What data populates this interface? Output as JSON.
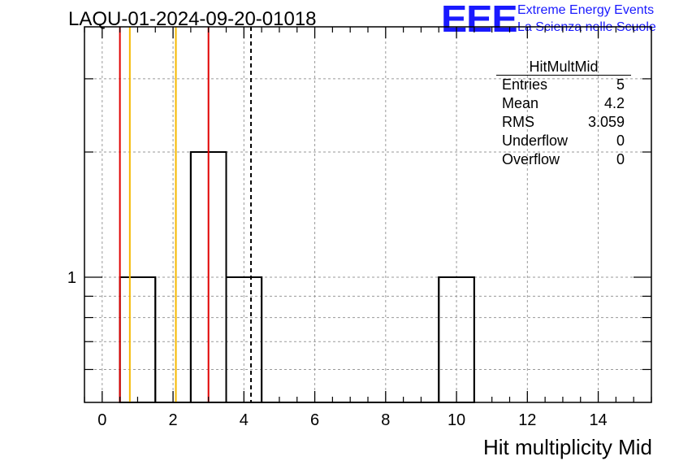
{
  "title": "LAQU-01-2024-09-20-01018",
  "logo": {
    "mark": "EEE",
    "line1": "Extreme Energy Events",
    "line2": "La Scienza nelle Scuole",
    "color": "#1a1aff"
  },
  "stats": {
    "title": "HitMultMid",
    "rows": [
      {
        "label": "Entries",
        "value": "5"
      },
      {
        "label": "Mean",
        "value": "4.2"
      },
      {
        "label": "RMS",
        "value": "3.059"
      },
      {
        "label": "Underflow",
        "value": "0"
      },
      {
        "label": "Overflow",
        "value": "0"
      }
    ]
  },
  "chart_data": {
    "type": "bar",
    "histogram": true,
    "xlabel": "Hit multiplicity Mid",
    "ylabel": "",
    "xlim": [
      -0.5,
      15.5
    ],
    "ylim": [
      0.5,
      4.0
    ],
    "yscale": "log",
    "grid": true,
    "bin_edges": [
      0.5,
      1.5,
      2.5,
      3.5,
      4.5,
      5.5,
      6.5,
      7.5,
      8.5,
      9.5,
      10.5
    ],
    "values": [
      1,
      0,
      2,
      1,
      0,
      0,
      0,
      0,
      0,
      1
    ],
    "xticks": [
      "0",
      "2",
      "4",
      "6",
      "8",
      "10",
      "12",
      "14"
    ],
    "yticks": [
      "1"
    ],
    "vertical_lines": [
      {
        "x": 0.5,
        "color": "#e00000"
      },
      {
        "x": 0.78,
        "color": "#f5b800"
      },
      {
        "x": 2.08,
        "color": "#f5b800"
      },
      {
        "x": 3.0,
        "color": "#e00000"
      },
      {
        "x": 4.2,
        "color": "#000000",
        "style": "dashed"
      }
    ],
    "legend_position": "top-right"
  }
}
